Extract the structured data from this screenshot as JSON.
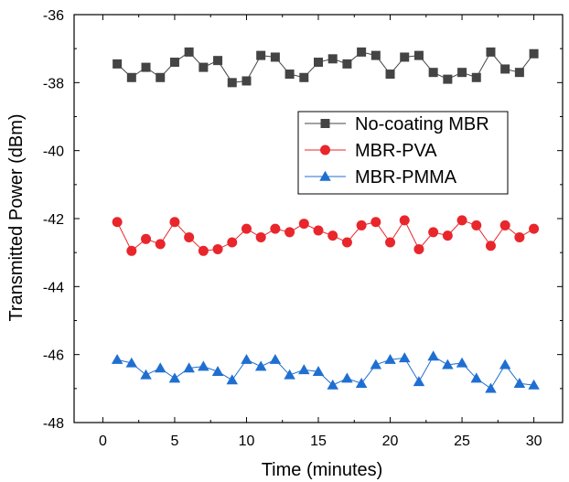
{
  "chart_data": {
    "type": "line",
    "xlabel": "Time (minutes)",
    "ylabel": "Transmitted Power (dBm)",
    "xlim": [
      -2,
      32
    ],
    "ylim": [
      -48,
      -36
    ],
    "xticks": [
      0,
      5,
      10,
      15,
      20,
      25,
      30
    ],
    "yticks": [
      -48,
      -46,
      -44,
      -42,
      -40,
      -38,
      -36
    ],
    "grid": false,
    "legend_position": "upper-right",
    "x": [
      1,
      2,
      3,
      4,
      5,
      6,
      7,
      8,
      9,
      10,
      11,
      12,
      13,
      14,
      15,
      16,
      17,
      18,
      19,
      20,
      21,
      22,
      23,
      24,
      25,
      26,
      27,
      28,
      29,
      30
    ],
    "series": [
      {
        "name": "No-coating MBR",
        "color": "#444444",
        "marker": "square",
        "values": [
          -37.45,
          -37.85,
          -37.55,
          -37.85,
          -37.4,
          -37.1,
          -37.55,
          -37.35,
          -38.0,
          -37.95,
          -37.2,
          -37.25,
          -37.75,
          -37.85,
          -37.4,
          -37.3,
          -37.45,
          -37.1,
          -37.2,
          -37.75,
          -37.25,
          -37.2,
          -37.7,
          -37.9,
          -37.7,
          -37.85,
          -37.1,
          -37.6,
          -37.7,
          -37.15
        ]
      },
      {
        "name": "MBR-PVA",
        "color": "#e8262b",
        "marker": "circle",
        "values": [
          -42.1,
          -42.95,
          -42.6,
          -42.75,
          -42.1,
          -42.55,
          -42.95,
          -42.9,
          -42.7,
          -42.3,
          -42.55,
          -42.3,
          -42.4,
          -42.15,
          -42.35,
          -42.5,
          -42.7,
          -42.2,
          -42.1,
          -42.7,
          -42.05,
          -42.9,
          -42.4,
          -42.5,
          -42.05,
          -42.2,
          -42.8,
          -42.2,
          -42.55,
          -42.3
        ]
      },
      {
        "name": "MBR-PMMA",
        "color": "#1f6fd1",
        "marker": "triangle",
        "values": [
          -46.15,
          -46.25,
          -46.6,
          -46.4,
          -46.7,
          -46.4,
          -46.35,
          -46.5,
          -46.75,
          -46.15,
          -46.35,
          -46.15,
          -46.6,
          -46.45,
          -46.5,
          -46.9,
          -46.7,
          -46.85,
          -46.3,
          -46.15,
          -46.1,
          -46.8,
          -46.05,
          -46.3,
          -46.25,
          -46.7,
          -47.0,
          -46.3,
          -46.85,
          -46.9
        ]
      }
    ]
  }
}
